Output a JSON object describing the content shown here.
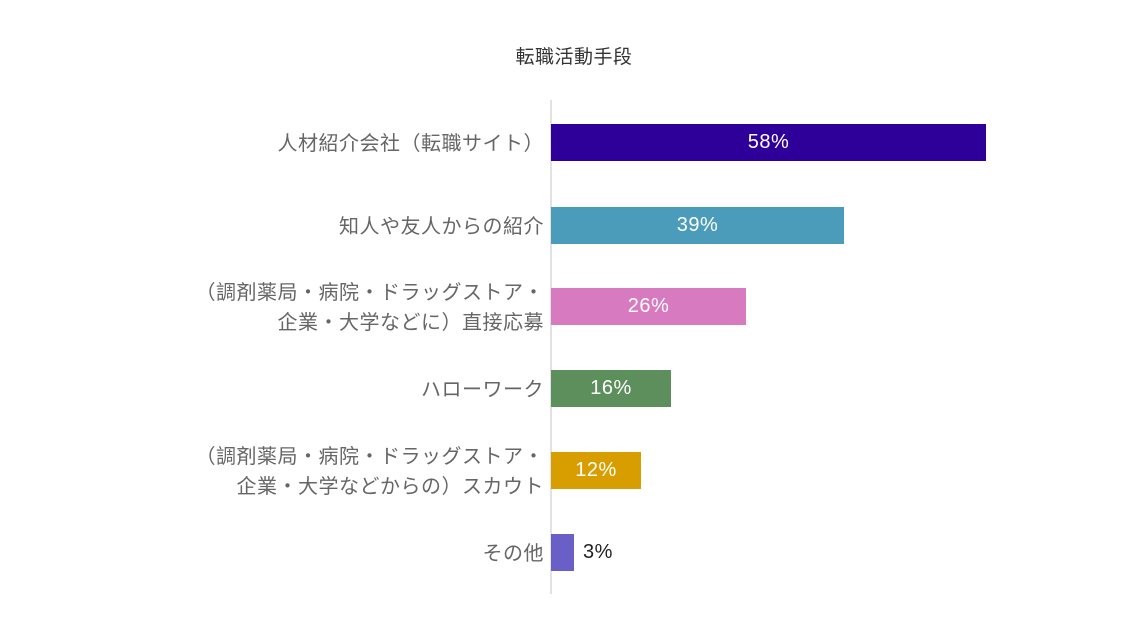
{
  "title": "転職活動手段",
  "chart_data": {
    "type": "bar",
    "orientation": "horizontal",
    "title": "転職活動手段",
    "xlabel": "",
    "ylabel": "",
    "unit": "%",
    "grid": false,
    "legend": null,
    "categories": [
      "人材紹介会社（転職サイト）",
      "知人や友人からの紹介",
      "（調剤薬局・病院・ドラッグストア・企業・大学などに）直接応募",
      "ハローワーク",
      "（調剤薬局・病院・ドラッグストア・企業・大学などからの）スカウト",
      "その他"
    ],
    "values": [
      58,
      39,
      26,
      16,
      12,
      3
    ],
    "colors": [
      "#2e0099",
      "#4b9bba",
      "#d77ac0",
      "#5c8f5c",
      "#d89e00",
      "#6a5fc7"
    ],
    "xlim": [
      0,
      58
    ]
  },
  "rows": [
    {
      "label_lines": [
        "人材紹介会社（転職サイト）"
      ],
      "value_label": "58%",
      "value": 58,
      "color": "#2e0099"
    },
    {
      "label_lines": [
        "知人や友人からの紹介"
      ],
      "value_label": "39%",
      "value": 39,
      "color": "#4b9bba"
    },
    {
      "label_lines": [
        "（調剤薬局・病院・ドラッグストア・",
        "企業・大学などに）直接応募"
      ],
      "value_label": "26%",
      "value": 26,
      "color": "#d77ac0"
    },
    {
      "label_lines": [
        "ハローワーク"
      ],
      "value_label": "16%",
      "value": 16,
      "color": "#5c8f5c"
    },
    {
      "label_lines": [
        "（調剤薬局・病院・ドラッグストア・",
        "企業・大学などからの）スカウト"
      ],
      "value_label": "12%",
      "value": 12,
      "color": "#d89e00"
    },
    {
      "label_lines": [
        "その他"
      ],
      "value_label": "3%",
      "value": 3,
      "color": "#6a5fc7"
    }
  ]
}
